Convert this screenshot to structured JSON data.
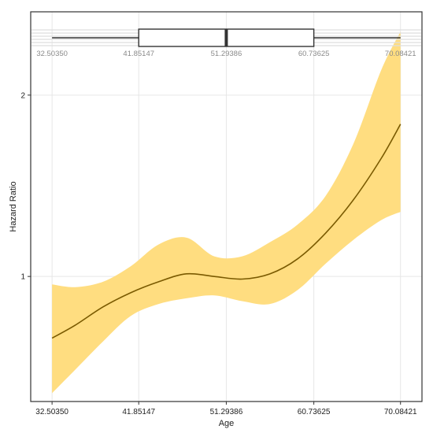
{
  "chart_data": {
    "type": "line",
    "title": "",
    "xlabel": "Age",
    "ylabel": "Hazard Ratio",
    "x_ticks": [
      32.5035,
      41.85147,
      51.29386,
      60.73625,
      70.08421
    ],
    "x_tick_labels": [
      "32.50350",
      "41.85147",
      "51.29386",
      "60.73625",
      "70.08421"
    ],
    "y_ticks": [
      1,
      2
    ],
    "y_tick_labels": [
      "1",
      "2"
    ],
    "y_scale": "log",
    "xlim": [
      30.2,
      72.4
    ],
    "ylim": [
      0.62,
      2.75
    ],
    "grid": true,
    "colors": {
      "line": "#7a5a00",
      "band": "#ffdd80",
      "grid": "#e6e6e6",
      "box": "#333333"
    },
    "series": [
      {
        "x": [
          32.5035,
          35,
          38,
          41,
          44,
          47,
          50,
          53,
          56,
          59,
          62,
          65,
          68,
          70.08421
        ],
        "y": [
          0.79,
          0.83,
          0.89,
          0.94,
          0.98,
          1.01,
          1.0,
          0.99,
          1.01,
          1.07,
          1.18,
          1.34,
          1.57,
          1.79
        ],
        "lower": [
          0.64,
          0.7,
          0.78,
          0.86,
          0.9,
          0.92,
          0.93,
          0.91,
          0.9,
          0.95,
          1.05,
          1.15,
          1.24,
          1.28
        ],
        "upper": [
          0.97,
          0.96,
          0.98,
          1.04,
          1.13,
          1.16,
          1.08,
          1.08,
          1.14,
          1.22,
          1.36,
          1.66,
          2.2,
          2.55
        ]
      }
    ],
    "boxplot": {
      "min": 32.5035,
      "q1": 41.85147,
      "median": 51.29386,
      "q3": 60.73625,
      "max": 70.08421,
      "labels": [
        "32.50350",
        "41.85147",
        "51.29386",
        "60.73625",
        "70.08421"
      ]
    }
  }
}
